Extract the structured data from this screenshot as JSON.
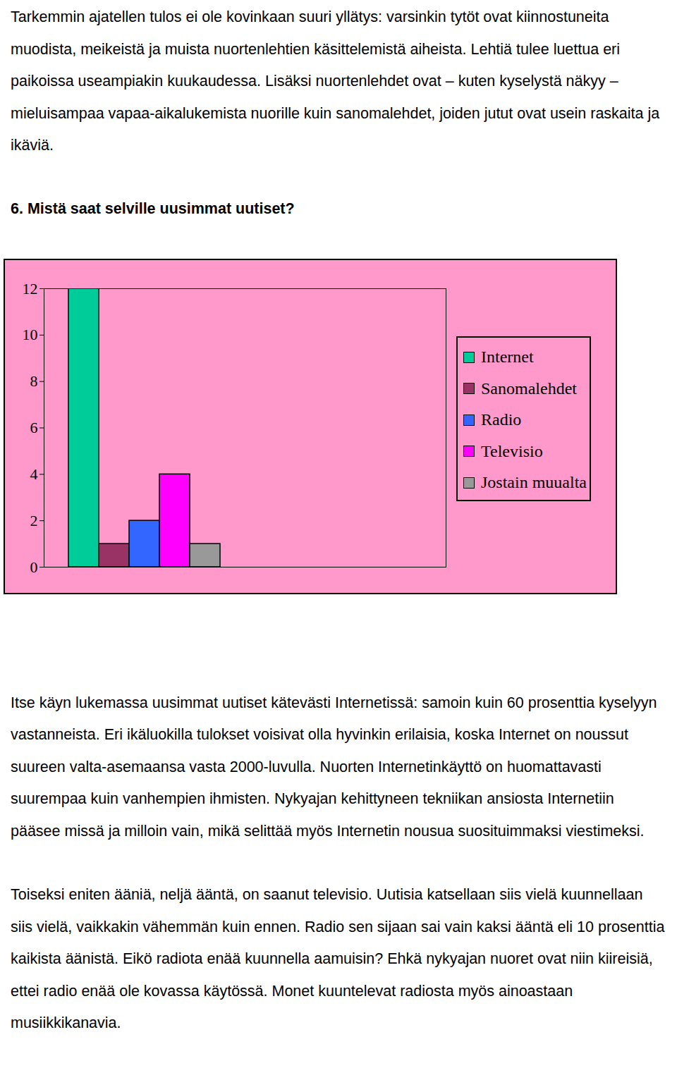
{
  "document": {
    "paragraphs_before": [
      "Tarkemmin ajatellen tulos ei ole kovinkaan suuri yllätys: varsinkin tytöt ovat kiinnostuneita muodista, meikeistä ja muista nuortenlehtien käsittelemistä aiheista. Lehtiä tulee luettua eri paikoissa useampiakin kuukaudessa. Lisäksi nuortenlehdet ovat – kuten kyselystä näkyy – mieluisampaa vapaa-aikalukemista nuorille kuin sanomalehdet, joiden jutut ovat usein raskaita ja ikäviä."
    ],
    "heading": "6. Mistä saat selville uusimmat uutiset?",
    "paragraphs_after": [
      "Itse käyn lukemassa uusimmat uutiset kätevästi Internetissä: samoin kuin 60 prosenttia kyselyyn vastanneista. Eri ikäluokilla tulokset voisivat olla hyvinkin erilaisia, koska Internet on noussut suureen valta-asemaansa vasta 2000-luvulla. Nuorten Internetinkäyttö on huomattavasti suurempaa kuin vanhempien ihmisten. Nykyajan kehittyneen tekniikan ansiosta Internetiin pääsee missä ja milloin vain, mikä selittää myös Internetin nousua suosituimmaksi viestimeksi.",
      "Toiseksi eniten ääniä, neljä ääntä, on saanut televisio. Uutisia katsellaan siis vielä kuunnellaan siis vielä, vaikkakin vähemmän kuin ennen. Radio sen sijaan sai vain kaksi ääntä eli 10 prosenttia kaikista äänistä. Eikö radiota enää kuunnella aamuisin? Ehkä nykyajan nuoret ovat niin kiireisiä, ettei radio enää ole kovassa käytössä. Monet kuuntelevat radiosta myös ainoastaan musiikkikanavia."
    ]
  },
  "chart_data": {
    "type": "bar",
    "categories": [
      null
    ],
    "series": [
      {
        "name": "Internet",
        "color": "#00cc99",
        "values": [
          12
        ]
      },
      {
        "name": "Sanomalehdet",
        "color": "#993366",
        "values": [
          1
        ]
      },
      {
        "name": "Radio",
        "color": "#3366ff",
        "values": [
          2
        ]
      },
      {
        "name": "Televisio",
        "color": "#ff00ff",
        "values": [
          4
        ]
      },
      {
        "name": "Jostain muualta",
        "color": "#999999",
        "values": [
          1
        ]
      }
    ],
    "ylim": [
      0,
      12
    ],
    "yticks": [
      0,
      2,
      4,
      6,
      8,
      10,
      12
    ],
    "grid": false,
    "legend": "right",
    "tick_labels": "y"
  }
}
